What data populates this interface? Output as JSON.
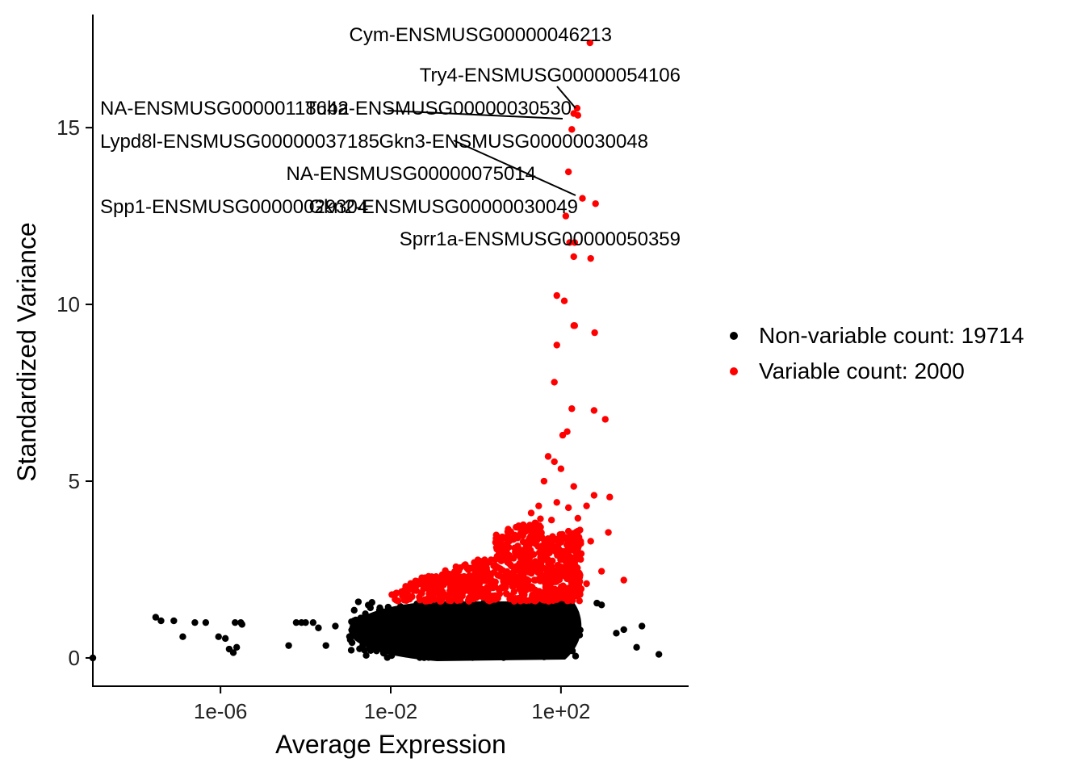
{
  "chart_data": {
    "type": "scatter",
    "title": "",
    "xlabel": "Average Expression",
    "ylabel": "Standardized Variance",
    "x_scale": "log10",
    "xlim": [
      1e-09,
      100000.0
    ],
    "ylim": [
      -0.8,
      18.2
    ],
    "x_ticks": [
      1e-06,
      0.01,
      100.0
    ],
    "x_tick_labels": [
      "1e-06",
      "1e-02",
      "1e+02"
    ],
    "y_ticks": [
      0,
      5,
      10,
      15
    ],
    "y_tick_labels": [
      "0",
      "5",
      "10",
      "15"
    ],
    "grid": false,
    "legend_position": "right",
    "series": [
      {
        "name": "Non-variable count: 19714",
        "color": "#000000",
        "dense_cloud": {
          "x_range": [
            0.001,
            300
          ],
          "y_range": [
            0,
            1.6
          ]
        },
        "points": [
          [
            1e-09,
            0.0
          ],
          [
            3e-08,
            1.15
          ],
          [
            4e-08,
            1.05
          ],
          [
            8e-08,
            1.05
          ],
          [
            1.3e-07,
            0.6
          ],
          [
            2.5e-07,
            1.0
          ],
          [
            4.5e-07,
            1.0
          ],
          [
            9e-07,
            0.6
          ],
          [
            1.3e-06,
            0.55
          ],
          [
            1.6e-06,
            0.25
          ],
          [
            2e-06,
            0.15
          ],
          [
            2.2e-06,
            1.0
          ],
          [
            2.4e-06,
            0.3
          ],
          [
            3e-06,
            1.0
          ],
          [
            3.2e-06,
            0.95
          ],
          [
            4e-05,
            0.35
          ],
          [
            6e-05,
            1.0
          ],
          [
            8e-05,
            1.0
          ],
          [
            0.0001,
            1.0
          ],
          [
            0.00015,
            1.0
          ],
          [
            0.0002,
            0.85
          ],
          [
            0.0003,
            0.35
          ],
          [
            0.0005,
            0.9
          ],
          [
            700,
            1.55
          ],
          [
            900,
            1.5
          ],
          [
            2000,
            0.7
          ],
          [
            3000,
            0.8
          ],
          [
            6000,
            0.3
          ],
          [
            8000,
            0.9
          ],
          [
            20000,
            0.1
          ]
        ]
      },
      {
        "name": "Variable count: 2000",
        "color": "#ff0000",
        "dense_cloud": {
          "x_range": [
            0.01,
            300
          ],
          "y_range": [
            1.6,
            3.5
          ]
        },
        "points": [
          [
            480,
            17.4
          ],
          [
            240,
            15.55
          ],
          [
            250,
            15.35
          ],
          [
            200,
            15.4
          ],
          [
            180,
            14.95
          ],
          [
            150,
            13.75
          ],
          [
            320,
            13.0
          ],
          [
            650,
            12.85
          ],
          [
            130,
            12.5
          ],
          [
            160,
            11.75
          ],
          [
            210,
            11.75
          ],
          [
            200,
            11.35
          ],
          [
            500,
            11.3
          ],
          [
            80,
            10.25
          ],
          [
            120,
            10.1
          ],
          [
            200,
            9.4
          ],
          [
            210,
            9.4
          ],
          [
            620,
            9.2
          ],
          [
            80,
            8.85
          ],
          [
            70,
            7.8
          ],
          [
            180,
            7.05
          ],
          [
            600,
            7.0
          ],
          [
            1100,
            6.75
          ],
          [
            140,
            6.4
          ],
          [
            110,
            6.3
          ],
          [
            50,
            5.7
          ],
          [
            70,
            5.55
          ],
          [
            100,
            5.35
          ],
          [
            40,
            5.0
          ],
          [
            200,
            4.85
          ],
          [
            600,
            4.6
          ],
          [
            1400,
            4.55
          ],
          [
            30,
            4.3
          ],
          [
            80,
            4.4
          ],
          [
            150,
            4.25
          ],
          [
            400,
            4.3
          ],
          [
            20,
            4.1
          ],
          [
            60,
            3.9
          ],
          [
            250,
            3.95
          ],
          [
            1300,
            3.55
          ],
          [
            500,
            3.3
          ],
          [
            300,
            2.95
          ],
          [
            900,
            2.45
          ],
          [
            3000,
            2.2
          ],
          [
            400,
            2.1
          ]
        ]
      }
    ],
    "annotations": [
      {
        "text": "Cym-ENSMUSG00000046213",
        "x": 480,
        "y": 17.4
      },
      {
        "text": "Try4-ENSMUSG00000054106",
        "x": 240,
        "y": 15.55
      },
      {
        "text": "NA-ENSMUSG00000118642",
        "x": 180,
        "y": 15.4
      },
      {
        "text": "Tuba-ENSMUSG00000030530",
        "x": 250,
        "y": 15.35
      },
      {
        "text": "Lypd8l-ENSMUSG00000037185",
        "x": 180,
        "y": 14.95
      },
      {
        "text": "Gkn3-ENSMUSG00000030048",
        "x": 320,
        "y": 13.0
      },
      {
        "text": "NA-ENSMUSG00000075014",
        "x": 150,
        "y": 13.75
      },
      {
        "text": "Spp1-ENSMUSG00000029304",
        "x": 250,
        "y": 13.0
      },
      {
        "text": "Gkn2-ENSMUSG00000030049",
        "x": 320,
        "y": 13.0
      },
      {
        "text": "Sprr1a-ENSMUSG00000050359",
        "x": 650,
        "y": 12.85
      }
    ]
  }
}
